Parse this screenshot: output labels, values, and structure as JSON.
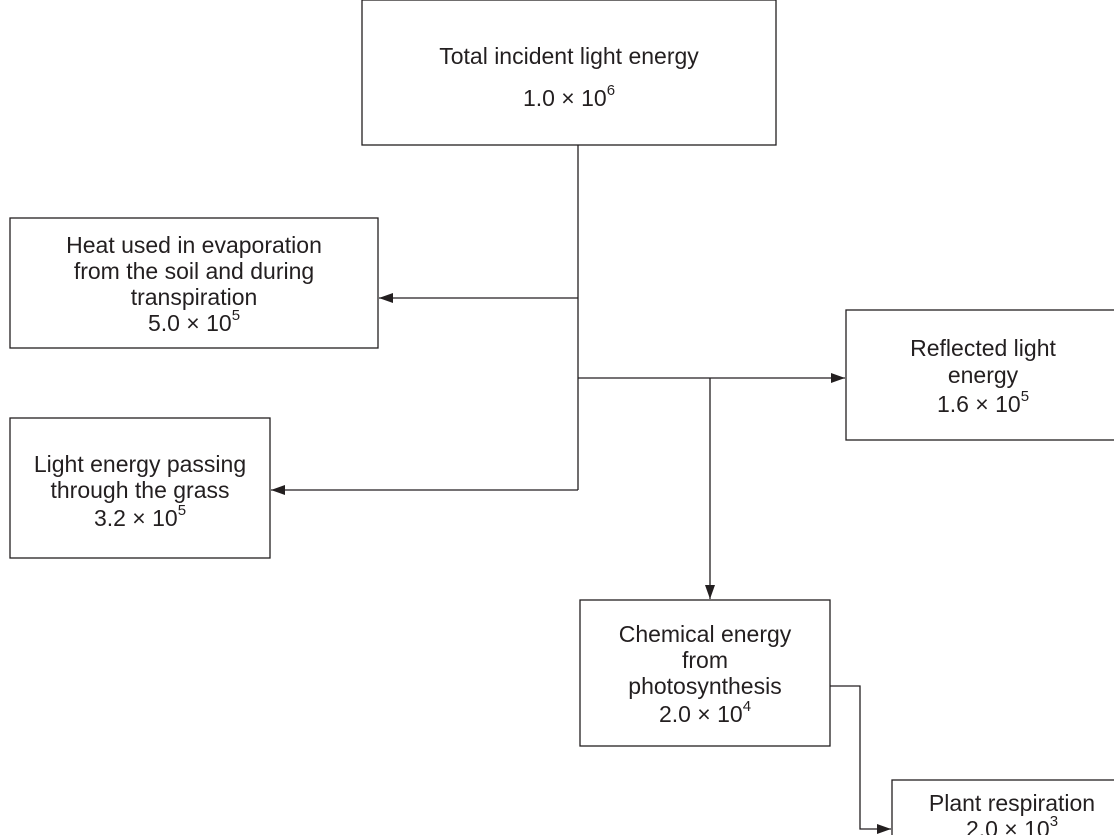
{
  "nodes": [
    {
      "lines": [
        "Total incident light energy"
      ],
      "value": {
        "base": "1.0 × 10",
        "exponent": "6"
      }
    },
    {
      "lines": [
        "Heat used in evaporation",
        "from the soil and during",
        "transpiration"
      ],
      "value": {
        "base": "5.0 × 10",
        "exponent": "5"
      }
    },
    {
      "lines": [
        "Reflected light",
        "energy"
      ],
      "value": {
        "base": "1.6 × 10",
        "exponent": "5"
      }
    },
    {
      "lines": [
        "Light energy passing",
        "through the grass"
      ],
      "value": {
        "base": "3.2 × 10",
        "exponent": "5"
      }
    },
    {
      "lines": [
        "Chemical energy",
        "from",
        "photosynthesis"
      ],
      "value": {
        "base": "2.0 × 10",
        "exponent": "4"
      }
    },
    {
      "lines": [
        "Plant respiration"
      ],
      "value": {
        "base": "2.0 × 10",
        "exponent": "3"
      }
    }
  ]
}
